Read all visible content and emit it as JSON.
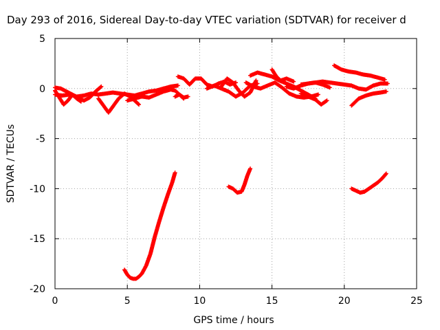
{
  "chart_data": {
    "type": "scatter",
    "title": "Day 293 of 2016, Sidereal Day-to-day VTEC variation (SDTVAR) for receiver d",
    "xlabel": "GPS time / hours",
    "ylabel": "SDTVAR / TECUs",
    "xlim": [
      0,
      25
    ],
    "ylim": [
      -20,
      5
    ],
    "xticks": [
      0,
      5,
      10,
      15,
      20,
      25
    ],
    "yticks": [
      -20,
      -15,
      -10,
      -5,
      0,
      5
    ],
    "grid": true,
    "marker": "plus",
    "color": "#ff0000",
    "series": [
      {
        "tracks": [
          {
            "x": [
              0.0,
              0.5,
              1.0,
              1.5,
              2.0,
              2.5,
              3.0,
              3.5,
              4.0,
              4.5,
              5.0,
              5.5,
              6.0,
              6.5,
              7.0,
              7.5,
              8.0,
              8.5
            ],
            "y": [
              -0.6,
              -0.7,
              -0.6,
              -0.8,
              -0.7,
              -0.5,
              -0.6,
              -0.5,
              -0.4,
              -0.5,
              -0.6,
              -0.7,
              -0.5,
              -0.3,
              -0.2,
              0.0,
              0.2,
              0.3
            ]
          },
          {
            "x": [
              0.0,
              0.3,
              0.6,
              0.9,
              1.2,
              1.5,
              1.8
            ],
            "y": [
              -0.2,
              -0.9,
              -1.6,
              -1.2,
              -0.6,
              -1.0,
              -1.3
            ]
          },
          {
            "x": [
              0.0,
              0.4,
              0.8,
              1.2,
              1.6,
              2.0,
              2.4,
              2.8,
              3.2
            ],
            "y": [
              0.1,
              0.0,
              -0.3,
              -0.6,
              -0.9,
              -1.2,
              -0.9,
              -0.3,
              0.2
            ]
          },
          {
            "x": [
              3.0,
              3.3,
              3.7,
              4.0,
              4.4,
              4.8,
              5.2,
              5.5,
              5.8
            ],
            "y": [
              -1.0,
              -1.6,
              -2.4,
              -1.8,
              -1.0,
              -0.5,
              -0.8,
              -1.2,
              -1.6
            ]
          },
          {
            "x": [
              5.0,
              5.5,
              6.0,
              6.5,
              7.0,
              7.5,
              8.0,
              8.3,
              8.6,
              8.9
            ],
            "y": [
              -1.2,
              -1.0,
              -0.8,
              -0.9,
              -0.6,
              -0.3,
              -0.1,
              -0.2,
              -0.6,
              -1.0
            ]
          },
          {
            "x": [
              8.3,
              8.6,
              8.9,
              9.2
            ],
            "y": [
              -0.8,
              -0.6,
              -0.9,
              -0.8
            ]
          },
          {
            "x": [
              8.5,
              8.9,
              9.3,
              9.7,
              10.1,
              10.5,
              10.9,
              11.3,
              11.7,
              12.1,
              12.5
            ],
            "y": [
              1.2,
              1.0,
              0.4,
              1.0,
              1.0,
              0.4,
              0.2,
              0.5,
              0.7,
              0.4,
              0.6
            ]
          },
          {
            "x": [
              10.5,
              11.0,
              11.5,
              12.0,
              12.5,
              13.0,
              13.5,
              14.0
            ],
            "y": [
              0.0,
              0.3,
              0.0,
              -0.3,
              -0.8,
              -0.4,
              0.3,
              0.5
            ]
          },
          {
            "x": [
              11.5,
              11.9,
              12.3,
              12.7,
              13.1,
              13.5,
              13.9
            ],
            "y": [
              0.2,
              1.0,
              0.6,
              -0.2,
              -0.8,
              -0.4,
              0.8
            ]
          },
          {
            "x": [
              13.5,
              14.0,
              14.5,
              15.0,
              15.5,
              16.0,
              16.5,
              17.0,
              17.5,
              18.0
            ],
            "y": [
              1.3,
              1.6,
              1.4,
              1.2,
              0.8,
              0.5,
              0.2,
              -0.2,
              -0.6,
              -1.0
            ]
          },
          {
            "x": [
              13.2,
              13.7,
              14.2,
              14.7,
              15.2,
              15.7,
              16.2,
              16.7,
              17.2,
              17.7,
              18.2
            ],
            "y": [
              0.6,
              0.2,
              0.0,
              0.3,
              0.6,
              0.1,
              -0.5,
              -0.8,
              -0.9,
              -0.8,
              -0.6
            ]
          },
          {
            "x": [
              15.0,
              15.3,
              15.6,
              16.0,
              16.5
            ],
            "y": [
              1.9,
              1.2,
              0.8,
              1.0,
              0.7
            ]
          },
          {
            "x": [
              16.0,
              16.5,
              17.0,
              17.5,
              18.0,
              18.5,
              19.0
            ],
            "y": [
              0.2,
              0.0,
              0.3,
              0.5,
              0.6,
              0.4,
              0.1
            ]
          },
          {
            "x": [
              17.0,
              17.5,
              18.0,
              18.4,
              18.8
            ],
            "y": [
              -0.5,
              -0.8,
              -1.1,
              -1.6,
              -1.2
            ]
          },
          {
            "x": [
              17.0,
              17.5,
              18.0,
              18.5,
              19.0,
              19.5,
              20.0,
              20.5,
              21.0,
              21.5,
              22.0,
              22.5,
              23.0
            ],
            "y": [
              0.4,
              0.5,
              0.6,
              0.7,
              0.6,
              0.5,
              0.4,
              0.3,
              0.0,
              -0.1,
              0.3,
              0.5,
              0.5
            ]
          },
          {
            "x": [
              19.3,
              19.8,
              20.3,
              20.8,
              21.3,
              21.8,
              22.3,
              22.8
            ],
            "y": [
              2.3,
              1.9,
              1.7,
              1.6,
              1.4,
              1.3,
              1.1,
              0.9
            ]
          },
          {
            "x": [
              20.5,
              21.0,
              21.5,
              22.0,
              22.5,
              22.9
            ],
            "y": [
              -1.7,
              -1.0,
              -0.7,
              -0.5,
              -0.4,
              -0.3
            ]
          },
          {
            "x": [
              4.8,
              5.0,
              5.2,
              5.4,
              5.6,
              5.8,
              6.0,
              6.3,
              6.6,
              6.9,
              7.2,
              7.5,
              7.8,
              8.1,
              8.3
            ],
            "y": [
              -18.1,
              -18.6,
              -18.9,
              -19.0,
              -19.0,
              -18.8,
              -18.5,
              -17.7,
              -16.5,
              -14.8,
              -13.3,
              -11.9,
              -10.6,
              -9.4,
              -8.4
            ]
          },
          {
            "x": [
              12.0,
              12.3,
              12.6,
              12.9,
              13.1,
              13.3,
              13.5
            ],
            "y": [
              -9.8,
              -10.0,
              -10.4,
              -10.3,
              -9.6,
              -8.7,
              -8.0
            ]
          },
          {
            "x": [
              20.5,
              20.8,
              21.1,
              21.4,
              21.7,
              22.0,
              22.3,
              22.6,
              22.9
            ],
            "y": [
              -10.0,
              -10.2,
              -10.4,
              -10.3,
              -10.0,
              -9.7,
              -9.4,
              -9.0,
              -8.5
            ]
          }
        ]
      }
    ]
  }
}
